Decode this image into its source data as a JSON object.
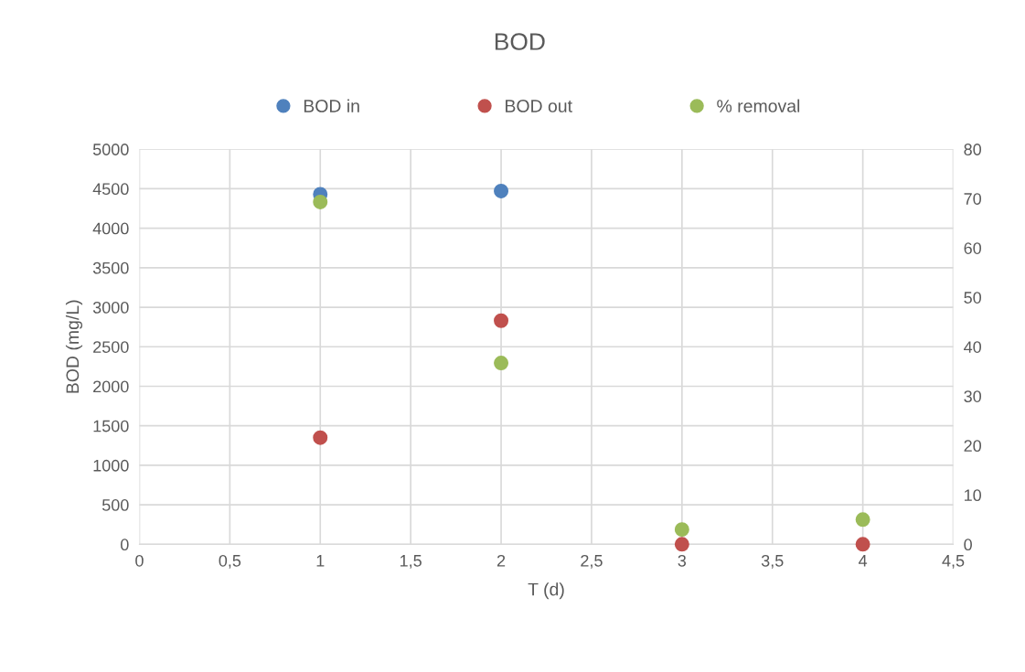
{
  "chart_data": {
    "type": "scatter",
    "title": "BOD",
    "xlabel": "T (d)",
    "ylabel": "BOD (mg/L)",
    "x": [
      1,
      2,
      3,
      4
    ],
    "series": [
      {
        "name": "BOD in",
        "color": "#4f81bd",
        "values": [
          4430,
          4470,
          null,
          null
        ]
      },
      {
        "name": "BOD out",
        "color": "#c0504d",
        "values": [
          1350,
          2830,
          0,
          0
        ]
      },
      {
        "name": "% removal",
        "color": "#9bbb59",
        "values": [
          69.3,
          36.7,
          3.0,
          5.0
        ],
        "axis": "y2"
      }
    ],
    "xlim": [
      0,
      4.5
    ],
    "xticks": [
      0,
      {
        "value": 0.5,
        "label": "0,5"
      },
      1,
      {
        "value": 1.5,
        "label": "1,5"
      },
      2,
      {
        "value": 2.5,
        "label": "2,5"
      },
      3,
      {
        "value": 3.5,
        "label": "3,5"
      },
      4,
      {
        "value": 4.5,
        "label": "4,5"
      }
    ],
    "ylim": [
      0,
      5000
    ],
    "yticks": [
      0,
      500,
      1000,
      1500,
      2000,
      2500,
      3000,
      3500,
      4000,
      4500,
      5000
    ],
    "y2lim": [
      0,
      80
    ],
    "y2ticks": [
      0,
      10,
      20,
      30,
      40,
      50,
      60,
      70,
      80
    ],
    "grid": true,
    "legend": "top",
    "marker": "circle"
  }
}
